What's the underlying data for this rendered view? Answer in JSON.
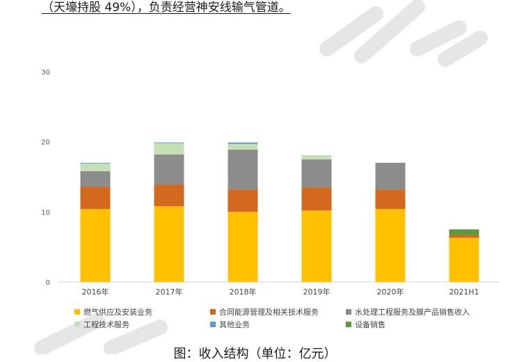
{
  "top_text": "（天壕持股 49%），负责经营神安线输气管道。",
  "caption": "图：收入结构（单位：亿元）",
  "chart_data": {
    "type": "bar",
    "stacked": true,
    "categories": [
      "2016年",
      "2017年",
      "2018年",
      "2019年",
      "2020年",
      "2021H1"
    ],
    "ylim": [
      0,
      30
    ],
    "yticks": [
      0,
      10,
      20,
      30
    ],
    "grid": false,
    "legend_position": "bottom",
    "series": [
      {
        "name": "燃气供应及安装业务",
        "color": "#FFC000",
        "values": [
          10.4,
          10.8,
          10.0,
          10.2,
          10.4,
          6.3
        ]
      },
      {
        "name": "合同能源管理及相关技术服务",
        "color": "#D2691E",
        "values": [
          3.2,
          3.1,
          3.2,
          3.3,
          2.8,
          0.4
        ]
      },
      {
        "name": "水处理工程服务及膜产品销售收入",
        "color": "#8C8C8C",
        "values": [
          2.2,
          4.3,
          5.7,
          4.0,
          3.8,
          0
        ]
      },
      {
        "name": "工程技术服务",
        "color": "#C5E0B4",
        "values": [
          1.1,
          1.6,
          0.8,
          0.6,
          0,
          0
        ]
      },
      {
        "name": "其他业务",
        "color": "#5B9BD5",
        "values": [
          0.1,
          0.1,
          0.2,
          0,
          0,
          0
        ]
      },
      {
        "name": "设备销售",
        "color": "#5B9A3A",
        "values": [
          0,
          0,
          0,
          0,
          0,
          0.8
        ]
      }
    ]
  }
}
